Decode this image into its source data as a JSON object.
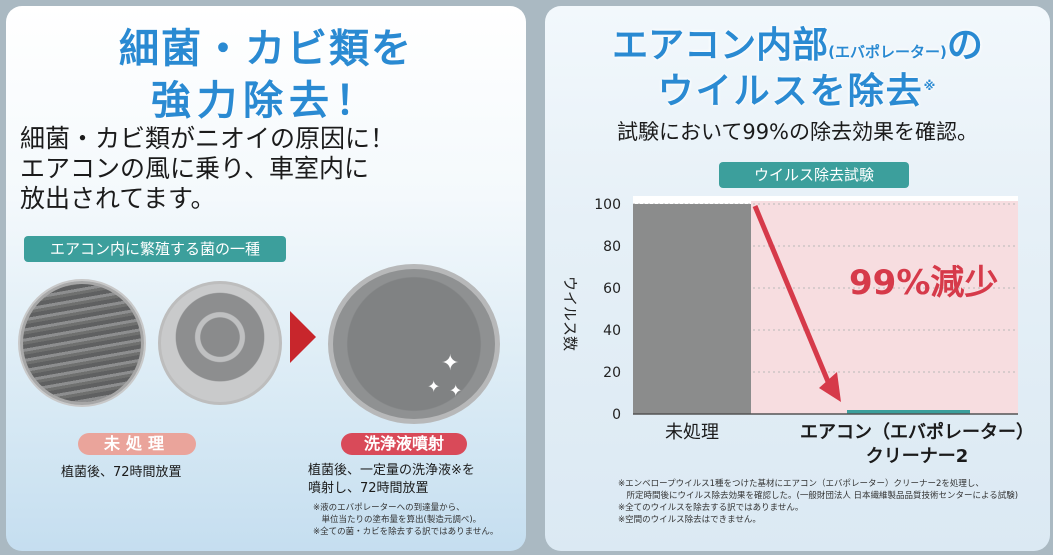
{
  "left": {
    "title_line1": "細菌・カビ類を",
    "title_line2": "強力除去！",
    "body_lines": [
      "細菌・カビ類がニオイの原因に！",
      "エアコンの風に乗り、車室内に",
      "放出されてます。"
    ],
    "pill_label": "エアコン内に繁殖する菌の一種",
    "label_untreated": "未処理",
    "label_sprayed": "洗浄液噴射",
    "caption_untreated": "植菌後、72時間放置",
    "caption_sprayed_lines": [
      "植菌後、一定量の洗浄液※を",
      "噴射し、72時間放置"
    ],
    "notes": [
      "※液のエバポレーターへの到達量から、",
      "　単位当たりの塗布量を算出(製造元調べ)。",
      "※全ての菌・カビを除去する訳ではありません。"
    ],
    "colors": {
      "title": "#2a8ad2",
      "pill": "#3c9f9c",
      "arrow": "#c8262c"
    }
  },
  "right": {
    "title_line1_a": "エアコン内部",
    "title_line1_small": "(エバポレーター)",
    "title_line1_b": "の",
    "title_line2": "ウイルスを除去",
    "title_mark": "※",
    "subtitle": "試験において99%の除去効果を確認。",
    "pill_label": "ウイルス除去試験",
    "annotation": "99%減少",
    "notes": [
      "※エンベロープウイルス1種をつけた基材にエアコン（エバポレーター）クリーナー2を処理し、",
      "　所定時間後にウイルス除去効果を確認した。(一般財団法人 日本繊維製品品質技術センターによる試験)",
      "※全てのウイルスを除去する訳ではありません。",
      "※空間のウイルス除去はできません。"
    ]
  },
  "chart_data": {
    "type": "bar",
    "ylabel": "ウイルス数",
    "ylim": [
      0,
      100
    ],
    "yticks": [
      "0",
      "20",
      "40",
      "60",
      "80",
      "100"
    ],
    "categories": [
      "未処理",
      "エアコン（エバポレーター）クリーナー2"
    ],
    "category_label_lines": [
      [
        "未処理"
      ],
      [
        "エアコン（エバポレーター）",
        "クリーナー2"
      ]
    ],
    "values": [
      100,
      1
    ],
    "bar_colors": [
      "#8b8c8c",
      "#3c9f9c"
    ],
    "annotation": "99%減少",
    "annotation_color": "#d63a4a"
  }
}
